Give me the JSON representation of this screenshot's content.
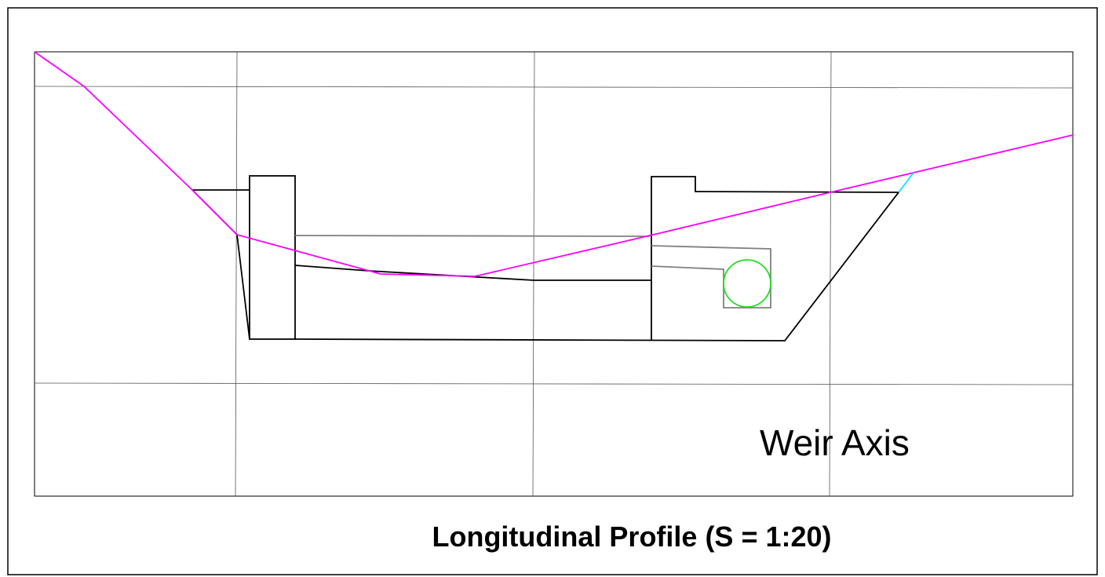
{
  "labels": {
    "axis": "Weir Axis"
  },
  "title": "Longitudinal Profile (S = 1:20)"
}
